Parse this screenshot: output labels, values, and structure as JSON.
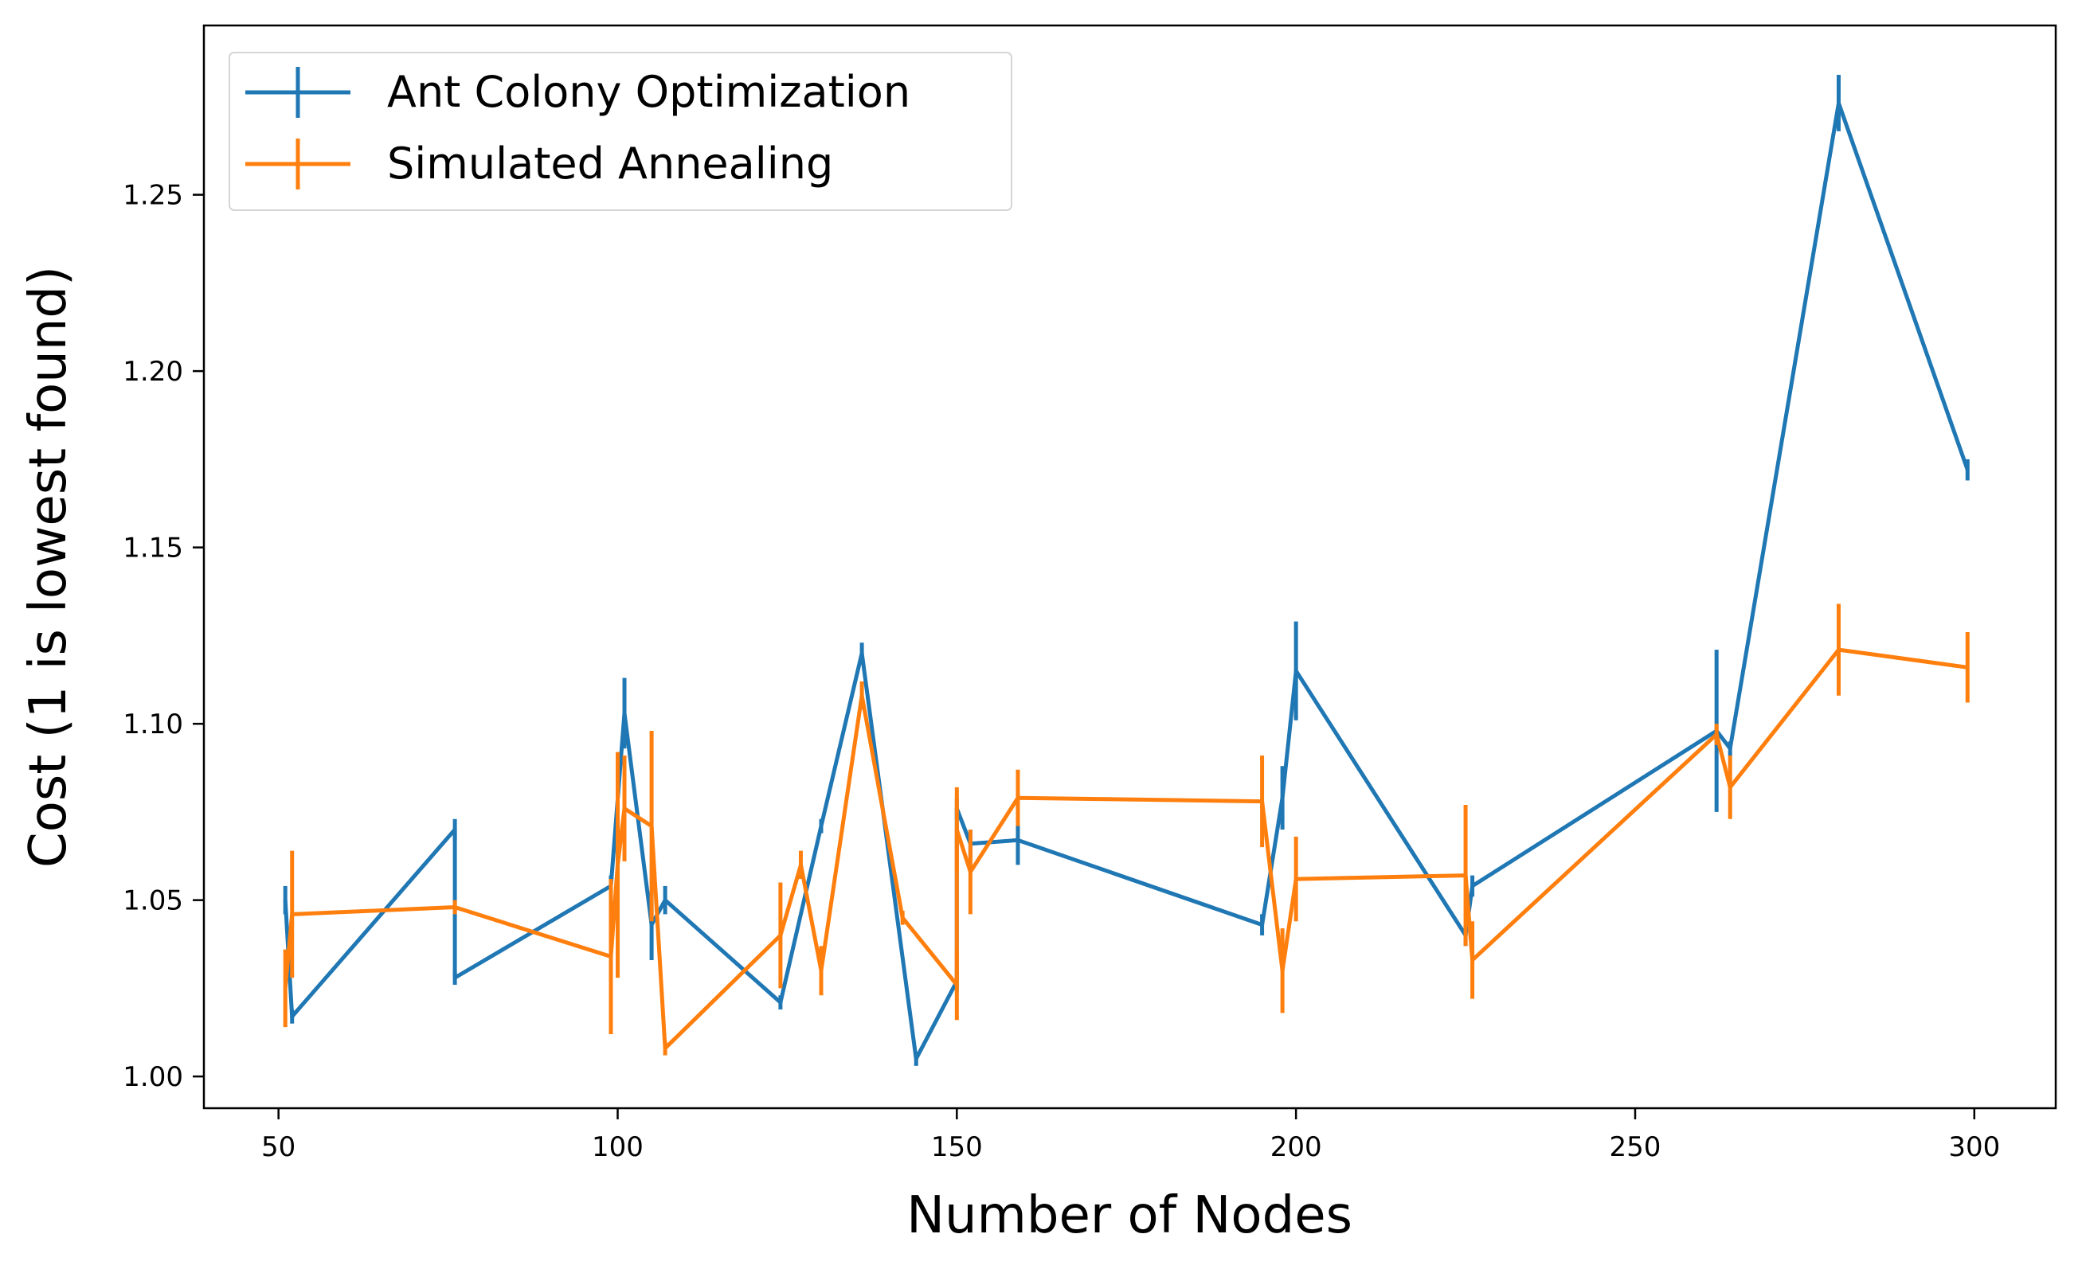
{
  "chart_data": {
    "type": "line",
    "title": "",
    "xlabel": "Number of Nodes",
    "ylabel": "Cost (1 is lowest found)",
    "xlim": [
      39,
      312
    ],
    "ylim": [
      0.991,
      1.298
    ],
    "x_ticks": [
      50,
      100,
      150,
      200,
      250,
      300
    ],
    "y_ticks": [
      1.0,
      1.05,
      1.1,
      1.15,
      1.2,
      1.25
    ],
    "x_tick_labels": [
      "50",
      "100",
      "150",
      "200",
      "250",
      "300"
    ],
    "y_tick_labels": [
      "1.00",
      "1.05",
      "1.10",
      "1.15",
      "1.20",
      "1.25"
    ],
    "grid": false,
    "legend_position": "top-left",
    "series": [
      {
        "name": "Ant Colony Optimization",
        "color": "#1f77b4",
        "points": [
          {
            "x": 51,
            "y": 1.05,
            "err": 0.004
          },
          {
            "x": 52,
            "y": 1.017,
            "err": 0.002
          },
          {
            "x": 76,
            "y": 1.07,
            "err": 0.003
          },
          {
            "x": 76,
            "y": 1.028,
            "err": 0.002
          },
          {
            "x": 99,
            "y": 1.054,
            "err": 0.003
          },
          {
            "x": 101,
            "y": 1.103,
            "err": 0.01
          },
          {
            "x": 105,
            "y": 1.043,
            "err": 0.01
          },
          {
            "x": 107,
            "y": 1.05,
            "err": 0.004
          },
          {
            "x": 124,
            "y": 1.021,
            "err": 0.002
          },
          {
            "x": 130,
            "y": 1.071,
            "err": 0.002
          },
          {
            "x": 136,
            "y": 1.12,
            "err": 0.003
          },
          {
            "x": 144,
            "y": 1.005,
            "err": 0.002
          },
          {
            "x": 150,
            "y": 1.027,
            "err": 0.003
          },
          {
            "x": 150,
            "y": 1.076,
            "err": 0.003
          },
          {
            "x": 152,
            "y": 1.066,
            "err": 0.004
          },
          {
            "x": 159,
            "y": 1.067,
            "err": 0.007
          },
          {
            "x": 195,
            "y": 1.043,
            "err": 0.003
          },
          {
            "x": 198,
            "y": 1.079,
            "err": 0.009
          },
          {
            "x": 200,
            "y": 1.115,
            "err": 0.014
          },
          {
            "x": 225,
            "y": 1.04,
            "err": 0.003
          },
          {
            "x": 226,
            "y": 1.054,
            "err": 0.003
          },
          {
            "x": 262,
            "y": 1.098,
            "err": 0.023
          },
          {
            "x": 264,
            "y": 1.093,
            "err": 0.002
          },
          {
            "x": 280,
            "y": 1.276,
            "err": 0.008
          },
          {
            "x": 299,
            "y": 1.172,
            "err": 0.003
          }
        ]
      },
      {
        "name": "Simulated Annealing",
        "color": "#ff7f0e",
        "points": [
          {
            "x": 51,
            "y": 1.025,
            "err": 0.011
          },
          {
            "x": 52,
            "y": 1.046,
            "err": 0.018
          },
          {
            "x": 76,
            "y": 1.048,
            "err": 0.002
          },
          {
            "x": 99,
            "y": 1.034,
            "err": 0.022
          },
          {
            "x": 100,
            "y": 1.06,
            "err": 0.032
          },
          {
            "x": 101,
            "y": 1.076,
            "err": 0.015
          },
          {
            "x": 105,
            "y": 1.071,
            "err": 0.027
          },
          {
            "x": 107,
            "y": 1.008,
            "err": 0.002
          },
          {
            "x": 124,
            "y": 1.04,
            "err": 0.015
          },
          {
            "x": 127,
            "y": 1.06,
            "err": 0.004
          },
          {
            "x": 130,
            "y": 1.03,
            "err": 0.007
          },
          {
            "x": 136,
            "y": 1.108,
            "err": 0.004
          },
          {
            "x": 142,
            "y": 1.045,
            "err": 0.002
          },
          {
            "x": 150,
            "y": 1.026,
            "err": 0.01
          },
          {
            "x": 150,
            "y": 1.07,
            "err": 0.012
          },
          {
            "x": 152,
            "y": 1.058,
            "err": 0.012
          },
          {
            "x": 159,
            "y": 1.079,
            "err": 0.008
          },
          {
            "x": 195,
            "y": 1.078,
            "err": 0.013
          },
          {
            "x": 198,
            "y": 1.03,
            "err": 0.012
          },
          {
            "x": 200,
            "y": 1.056,
            "err": 0.012
          },
          {
            "x": 225,
            "y": 1.057,
            "err": 0.02
          },
          {
            "x": 226,
            "y": 1.033,
            "err": 0.011
          },
          {
            "x": 262,
            "y": 1.097,
            "err": 0.003
          },
          {
            "x": 264,
            "y": 1.082,
            "err": 0.009
          },
          {
            "x": 280,
            "y": 1.121,
            "err": 0.013
          },
          {
            "x": 299,
            "y": 1.116,
            "err": 0.01
          }
        ]
      }
    ]
  }
}
